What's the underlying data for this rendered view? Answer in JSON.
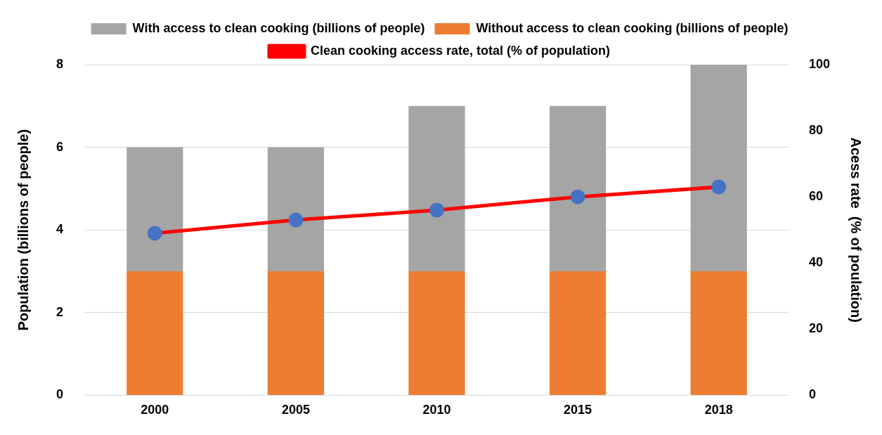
{
  "chart_data": {
    "type": "bar",
    "stacked": true,
    "categories": [
      "2000",
      "2005",
      "2010",
      "2015",
      "2018"
    ],
    "series": [
      {
        "name": "Without access to clean cooking (billions of people)",
        "color": "#ed7d31",
        "values": [
          3,
          3,
          3,
          3,
          3
        ]
      },
      {
        "name": "With access to clean cooking (billions of people)",
        "color": "#a5a5a5",
        "values": [
          3,
          3,
          4,
          4,
          5
        ]
      },
      {
        "name": "Clean cooking access rate, total (% of population)",
        "type": "line",
        "axis": "y2",
        "color": "#ff0000",
        "values": [
          49,
          53,
          56,
          60,
          63
        ]
      }
    ],
    "ylabel": "Population (billions of people)",
    "y2label": "Acess rate  (% of poulation)",
    "ylim": [
      0,
      8
    ],
    "yticks": [
      0,
      2,
      4,
      6,
      8
    ],
    "y2lim": [
      0,
      100
    ],
    "y2ticks": [
      0,
      20,
      40,
      60,
      80,
      100
    ],
    "grid": "y",
    "legend": "top",
    "marker": "circle"
  }
}
